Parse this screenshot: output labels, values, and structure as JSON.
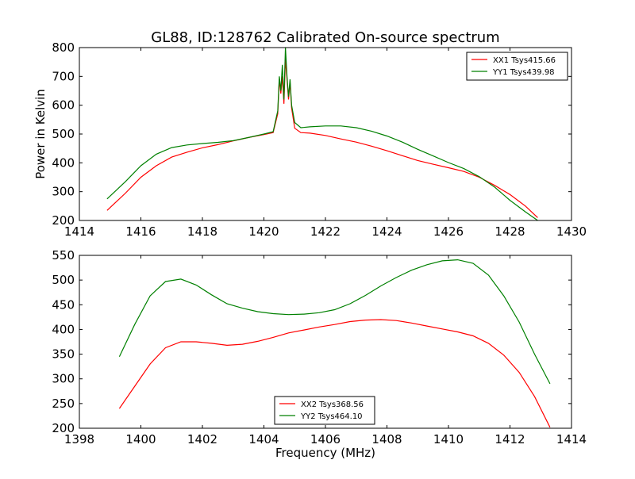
{
  "figure": {
    "title": "GL88, ID:128762 Calibrated On-source spectrum"
  },
  "chart_data": [
    {
      "type": "line",
      "title": "GL88, ID:128762 Calibrated On-source spectrum",
      "xlabel": "",
      "ylabel": "Power in Kelvin",
      "xlim": [
        1414,
        1430
      ],
      "ylim": [
        200,
        800
      ],
      "xticks": [
        1414,
        1416,
        1418,
        1420,
        1422,
        1424,
        1426,
        1428,
        1430
      ],
      "yticks": [
        200,
        300,
        400,
        500,
        600,
        700,
        800
      ],
      "grid": false,
      "legend_position": "top-right",
      "series": [
        {
          "name": "XX1 Tsys415.66",
          "color": "#ff0000",
          "points": [
            [
              1414.9,
              235
            ],
            [
              1415.5,
              295
            ],
            [
              1416.0,
              350
            ],
            [
              1416.5,
              390
            ],
            [
              1417.0,
              420
            ],
            [
              1417.5,
              437
            ],
            [
              1418.0,
              452
            ],
            [
              1418.5,
              463
            ],
            [
              1419.0,
              476
            ],
            [
              1419.5,
              488
            ],
            [
              1420.0,
              498
            ],
            [
              1420.3,
              505
            ],
            [
              1420.45,
              570
            ],
            [
              1420.5,
              690
            ],
            [
              1420.55,
              640
            ],
            [
              1420.6,
              700
            ],
            [
              1420.65,
              605
            ],
            [
              1420.7,
              760
            ],
            [
              1420.75,
              690
            ],
            [
              1420.8,
              620
            ],
            [
              1420.85,
              680
            ],
            [
              1420.9,
              590
            ],
            [
              1421.0,
              520
            ],
            [
              1421.2,
              505
            ],
            [
              1421.5,
              503
            ],
            [
              1422.0,
              495
            ],
            [
              1422.5,
              483
            ],
            [
              1423.0,
              472
            ],
            [
              1423.5,
              458
            ],
            [
              1424.0,
              442
            ],
            [
              1424.5,
              425
            ],
            [
              1425.0,
              408
            ],
            [
              1425.5,
              395
            ],
            [
              1426.0,
              383
            ],
            [
              1426.5,
              370
            ],
            [
              1427.0,
              350
            ],
            [
              1427.5,
              322
            ],
            [
              1428.0,
              290
            ],
            [
              1428.5,
              250
            ],
            [
              1428.9,
              210
            ]
          ]
        },
        {
          "name": "YY1 Tsys439.98",
          "color": "#008000",
          "points": [
            [
              1414.9,
              275
            ],
            [
              1415.5,
              335
            ],
            [
              1416.0,
              390
            ],
            [
              1416.5,
              430
            ],
            [
              1417.0,
              453
            ],
            [
              1417.5,
              462
            ],
            [
              1418.0,
              467
            ],
            [
              1418.5,
              471
            ],
            [
              1419.0,
              477
            ],
            [
              1419.5,
              488
            ],
            [
              1420.0,
              500
            ],
            [
              1420.3,
              508
            ],
            [
              1420.45,
              580
            ],
            [
              1420.5,
              700
            ],
            [
              1420.55,
              650
            ],
            [
              1420.6,
              740
            ],
            [
              1420.65,
              620
            ],
            [
              1420.7,
              800
            ],
            [
              1420.75,
              700
            ],
            [
              1420.8,
              630
            ],
            [
              1420.85,
              690
            ],
            [
              1420.9,
              600
            ],
            [
              1421.0,
              540
            ],
            [
              1421.2,
              522
            ],
            [
              1421.5,
              525
            ],
            [
              1422.0,
              528
            ],
            [
              1422.5,
              528
            ],
            [
              1423.0,
              522
            ],
            [
              1423.5,
              510
            ],
            [
              1424.0,
              493
            ],
            [
              1424.5,
              472
            ],
            [
              1425.0,
              447
            ],
            [
              1425.5,
              424
            ],
            [
              1426.0,
              401
            ],
            [
              1426.5,
              380
            ],
            [
              1427.0,
              352
            ],
            [
              1427.5,
              316
            ],
            [
              1428.0,
              270
            ],
            [
              1428.5,
              230
            ],
            [
              1428.9,
              200
            ]
          ]
        }
      ]
    },
    {
      "type": "line",
      "title": "",
      "xlabel": "Frequency (MHz)",
      "ylabel": "",
      "xlim": [
        1398,
        1414
      ],
      "ylim": [
        200,
        550
      ],
      "xticks": [
        1398,
        1400,
        1402,
        1404,
        1406,
        1408,
        1410,
        1412,
        1414
      ],
      "yticks": [
        200,
        250,
        300,
        350,
        400,
        450,
        500,
        550
      ],
      "grid": false,
      "legend_position": "bottom-center",
      "series": [
        {
          "name": "XX2 Tsys368.56",
          "color": "#ff0000",
          "points": [
            [
              1399.3,
              240
            ],
            [
              1399.8,
              285
            ],
            [
              1400.3,
              330
            ],
            [
              1400.8,
              363
            ],
            [
              1401.3,
              375
            ],
            [
              1401.8,
              375
            ],
            [
              1402.3,
              372
            ],
            [
              1402.8,
              368
            ],
            [
              1403.3,
              370
            ],
            [
              1403.8,
              376
            ],
            [
              1404.3,
              384
            ],
            [
              1404.8,
              393
            ],
            [
              1405.3,
              399
            ],
            [
              1405.8,
              405
            ],
            [
              1406.3,
              410
            ],
            [
              1406.8,
              416
            ],
            [
              1407.3,
              419
            ],
            [
              1407.8,
              420
            ],
            [
              1408.3,
              418
            ],
            [
              1408.8,
              413
            ],
            [
              1409.3,
              407
            ],
            [
              1409.8,
              401
            ],
            [
              1410.3,
              395
            ],
            [
              1410.8,
              387
            ],
            [
              1411.3,
              372
            ],
            [
              1411.8,
              348
            ],
            [
              1412.3,
              313
            ],
            [
              1412.8,
              264
            ],
            [
              1413.3,
              202
            ]
          ]
        },
        {
          "name": "YY2 Tsys464.10",
          "color": "#008000",
          "points": [
            [
              1399.3,
              345
            ],
            [
              1399.8,
              410
            ],
            [
              1400.3,
              468
            ],
            [
              1400.8,
              497
            ],
            [
              1401.3,
              502
            ],
            [
              1401.8,
              490
            ],
            [
              1402.3,
              470
            ],
            [
              1402.8,
              452
            ],
            [
              1403.3,
              443
            ],
            [
              1403.8,
              436
            ],
            [
              1404.3,
              432
            ],
            [
              1404.8,
              430
            ],
            [
              1405.3,
              431
            ],
            [
              1405.8,
              434
            ],
            [
              1406.3,
              440
            ],
            [
              1406.8,
              452
            ],
            [
              1407.3,
              469
            ],
            [
              1407.8,
              488
            ],
            [
              1408.3,
              505
            ],
            [
              1408.8,
              520
            ],
            [
              1409.3,
              531
            ],
            [
              1409.8,
              539
            ],
            [
              1410.3,
              541
            ],
            [
              1410.8,
              534
            ],
            [
              1411.3,
              510
            ],
            [
              1411.8,
              468
            ],
            [
              1412.3,
              415
            ],
            [
              1412.8,
              350
            ],
            [
              1413.3,
              290
            ]
          ]
        }
      ]
    }
  ]
}
